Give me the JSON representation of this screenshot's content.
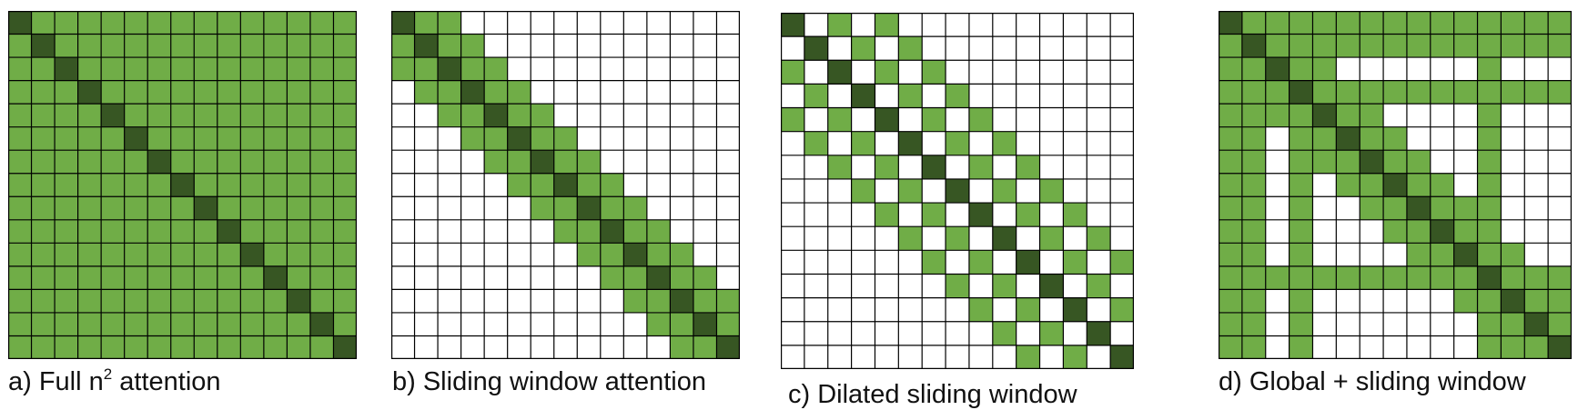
{
  "colors": {
    "diagonal": "#375623",
    "attended": "#70ad47",
    "empty": "#ffffff",
    "grid": "#000000"
  },
  "panels": [
    {
      "id": "a",
      "caption_prefix": "a) Full n",
      "caption_sup": "2",
      "caption_suffix": " attention",
      "pattern": "full",
      "size": 15
    },
    {
      "id": "b",
      "caption_prefix": "b) Sliding window attention",
      "caption_sup": "",
      "caption_suffix": "",
      "pattern": "sliding",
      "size": 15,
      "window": 2
    },
    {
      "id": "c",
      "caption_prefix": "c) Dilated sliding window",
      "caption_sup": "",
      "caption_suffix": "",
      "pattern": "dilated",
      "size": 15,
      "window": 2,
      "dilation": 2
    },
    {
      "id": "d",
      "caption_prefix": "d) Global + sliding window",
      "caption_sup": "",
      "caption_suffix": "",
      "pattern": "global_sliding",
      "size": 15,
      "window": 2,
      "global_tokens": [
        0,
        1,
        3,
        11
      ]
    }
  ]
}
